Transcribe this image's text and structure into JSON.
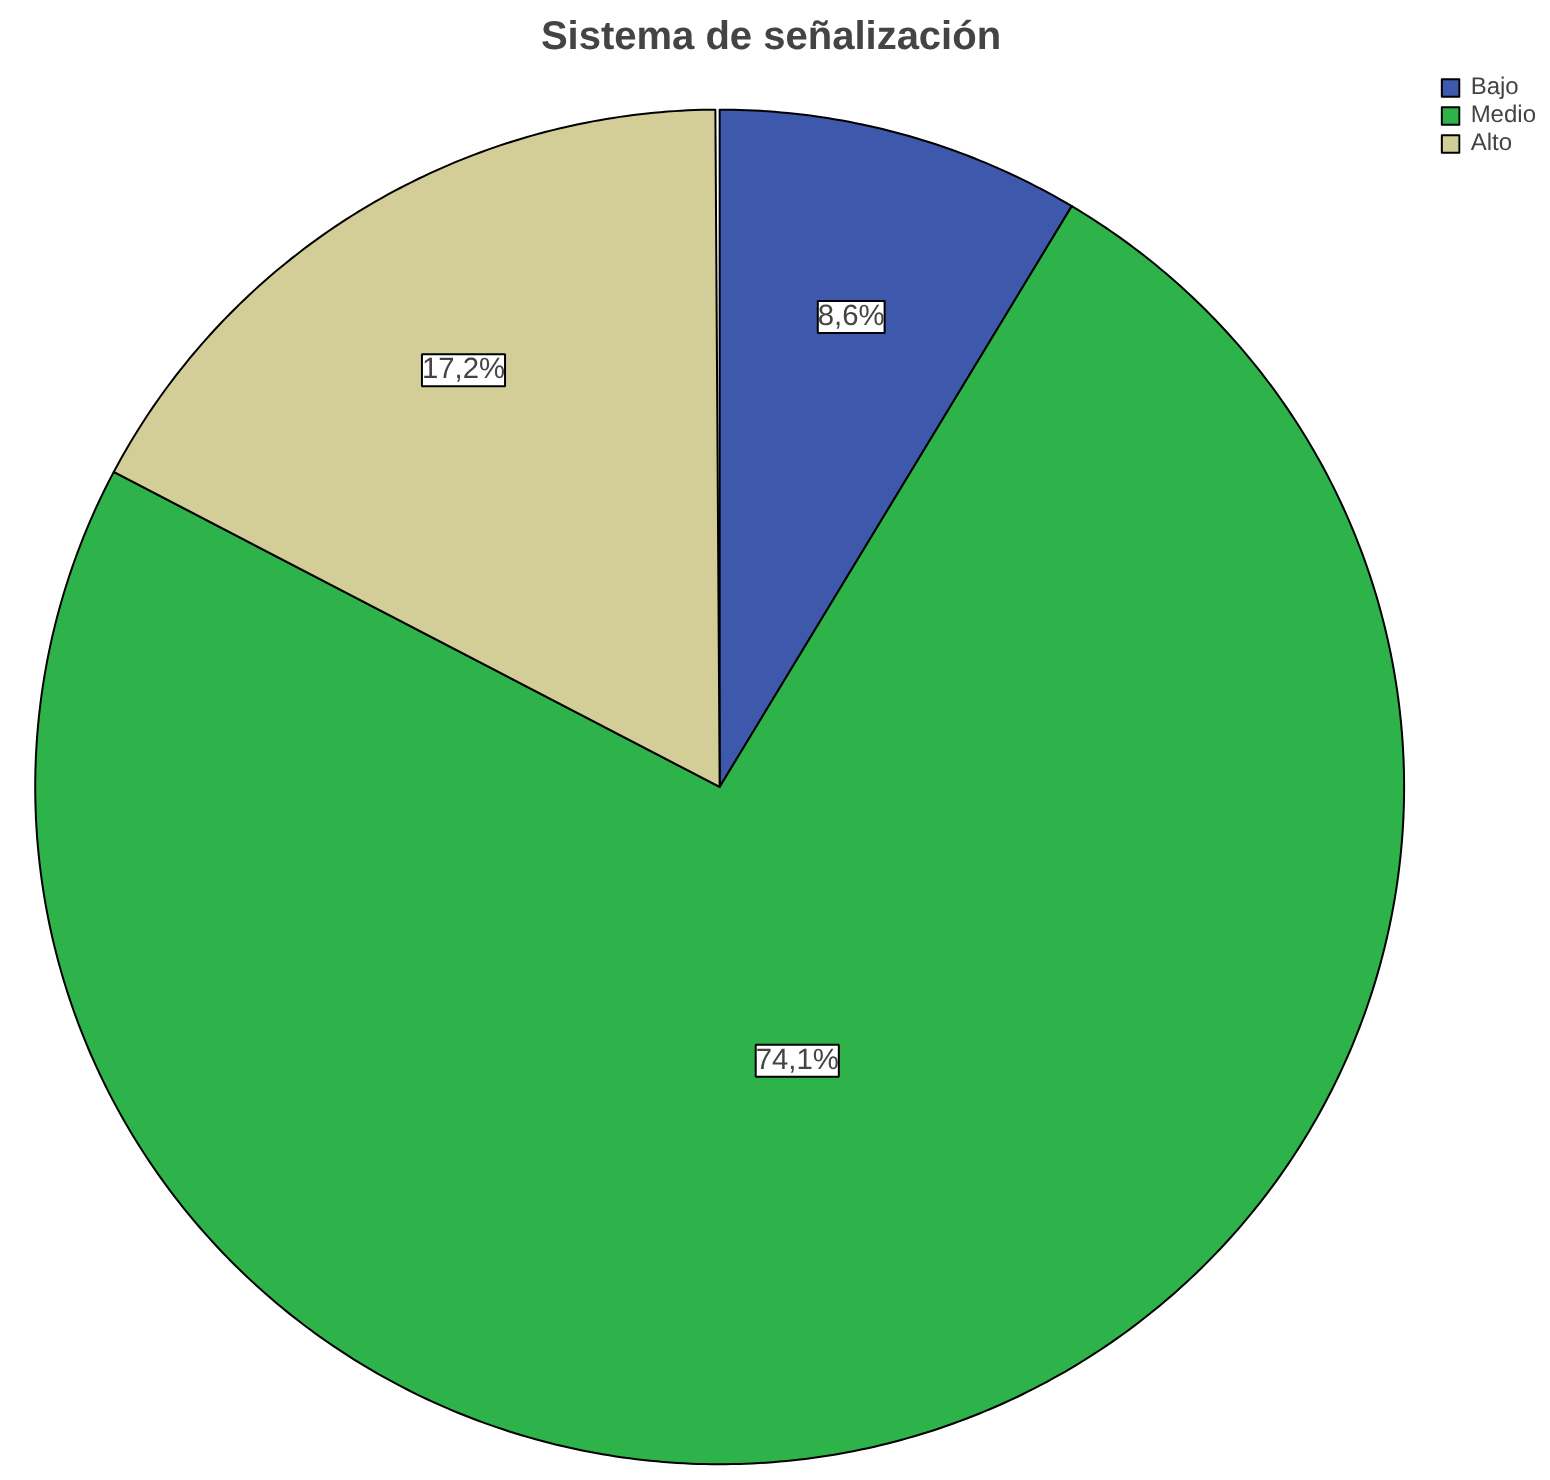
{
  "chart_data": {
    "type": "pie",
    "title": "Sistema de señalización",
    "categories": [
      "Bajo",
      "Medio",
      "Alto"
    ],
    "values": [
      8.6,
      74.1,
      17.2
    ],
    "colors": [
      "#3e58ac",
      "#2db34a",
      "#d3ce97"
    ],
    "value_labels": [
      "8,6%",
      "74,1%",
      "17,2%"
    ],
    "legend": "top right"
  }
}
